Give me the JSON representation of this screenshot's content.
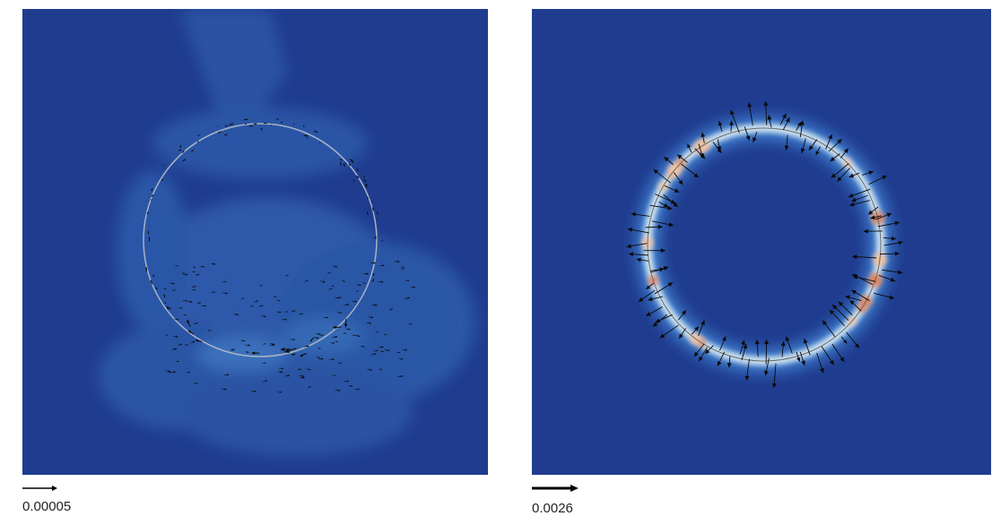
{
  "panels": [
    {
      "scale_label": "0.00005"
    },
    {
      "scale_label": "0.0026"
    }
  ]
}
